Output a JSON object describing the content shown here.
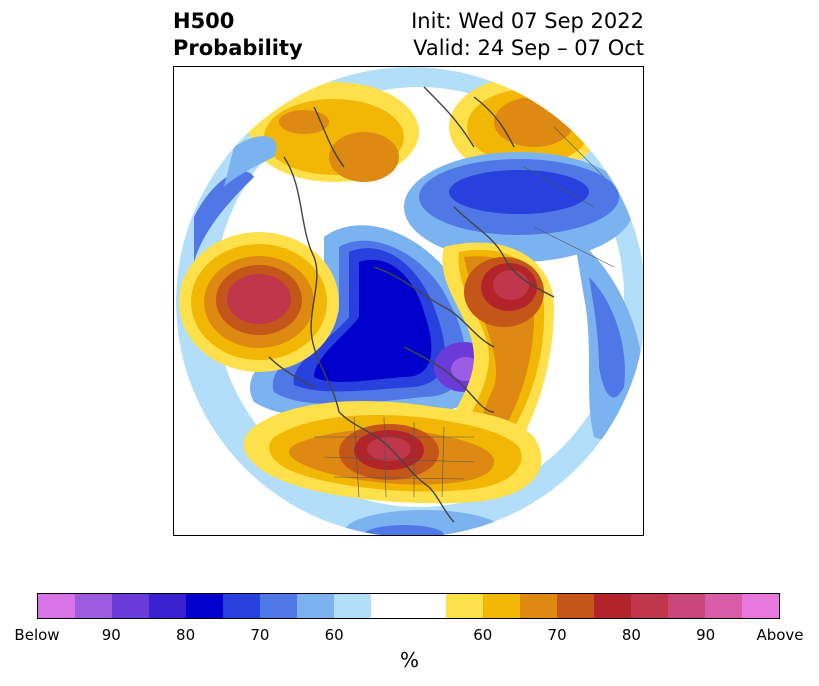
{
  "title": {
    "left_line1": "H500",
    "left_line2": "Probability",
    "right_line1": "Init: Wed 07 Sep 2022",
    "right_line2": "Valid: 24 Sep – 07 Oct"
  },
  "map": {
    "projection": "north polar stereographic",
    "colors": {
      "below_strong": "#2a1fc7",
      "below_core": "#0000cc",
      "below_mid": "#4f78e6",
      "below_light": "#7ab3f0",
      "below_faint": "#b3defa",
      "above_faint": "#fde04a",
      "above_light": "#f2b705",
      "above_mid": "#de8912",
      "above_strong": "#c4561a",
      "above_core": "#c0364a",
      "purple_core": "#9b5de5",
      "coast": "#444444"
    }
  },
  "colorbar": {
    "colors": [
      "#d873e8",
      "#9d5be0",
      "#6a3bd8",
      "#3a20cf",
      "#0000cc",
      "#2740de",
      "#4f78e6",
      "#7ab3f0",
      "#b3defa",
      "#ffffff",
      "#fde04a",
      "#f2b705",
      "#de8912",
      "#c4561a",
      "#b2242a",
      "#c0364a",
      "#c9477a",
      "#d95ca8",
      "#e878de"
    ],
    "tick_labels": [
      "Below",
      "90",
      "80",
      "70",
      "60",
      "60",
      "70",
      "80",
      "90",
      "Above"
    ],
    "unit": "%"
  }
}
